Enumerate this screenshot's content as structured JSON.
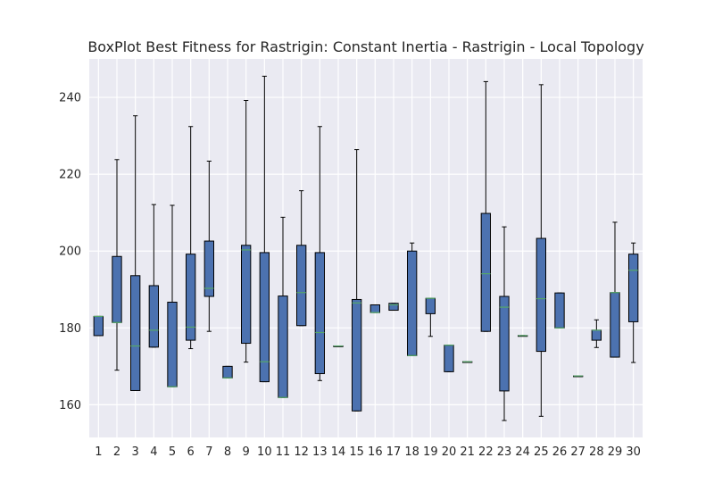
{
  "chart_data": {
    "type": "box",
    "title": "BoxPlot Best Fitness for Rastrigin: Constant Inertia - Rastrigin - Local Topology",
    "xlabel": "",
    "ylabel": "",
    "categories": [
      "1",
      "2",
      "3",
      "4",
      "5",
      "6",
      "7",
      "8",
      "9",
      "10",
      "11",
      "12",
      "13",
      "14",
      "15",
      "16",
      "17",
      "18",
      "19",
      "20",
      "21",
      "22",
      "23",
      "24",
      "25",
      "26",
      "27",
      "28",
      "29",
      "30"
    ],
    "yticks": [
      160,
      180,
      200,
      220,
      240
    ],
    "ylim": [
      151.5,
      250
    ],
    "grid": true,
    "colors": {
      "box": "#4c72b0",
      "median": "#55a868",
      "background": "#eaeaf2",
      "grid": "#ffffff",
      "edge": "#000000"
    },
    "boxes": [
      {
        "min": 178.0,
        "q1": 178.0,
        "median": 183.0,
        "q3": 183.0,
        "max": 183.0
      },
      {
        "min": 169.0,
        "q1": 181.4,
        "median": 181.4,
        "q3": 198.6,
        "max": 223.8
      },
      {
        "min": 163.7,
        "q1": 163.7,
        "median": 175.3,
        "q3": 193.6,
        "max": 235.2
      },
      {
        "min": 175.0,
        "q1": 175.0,
        "median": 179.4,
        "q3": 191.0,
        "max": 212.1
      },
      {
        "min": 164.7,
        "q1": 164.7,
        "median": 164.7,
        "q3": 186.7,
        "max": 211.9
      },
      {
        "min": 174.6,
        "q1": 176.8,
        "median": 180.2,
        "q3": 199.2,
        "max": 232.4
      },
      {
        "min": 179.1,
        "q1": 188.2,
        "median": 190.3,
        "q3": 202.6,
        "max": 223.4
      },
      {
        "min": 167.0,
        "q1": 167.0,
        "median": 167.0,
        "q3": 170.0,
        "max": 170.0
      },
      {
        "min": 171.1,
        "q1": 176.0,
        "median": 200.3,
        "q3": 201.5,
        "max": 239.2
      },
      {
        "min": 166.0,
        "q1": 166.0,
        "median": 171.2,
        "q3": 199.6,
        "max": 245.5
      },
      {
        "min": 161.9,
        "q1": 161.9,
        "median": 161.9,
        "q3": 188.3,
        "max": 208.8
      },
      {
        "min": 180.6,
        "q1": 180.6,
        "median": 189.2,
        "q3": 201.5,
        "max": 215.7
      },
      {
        "min": 166.3,
        "q1": 168.1,
        "median": 178.8,
        "q3": 199.6,
        "max": 232.4
      },
      {
        "min": 175.3,
        "q1": 175.3,
        "median": 175.3,
        "q3": 175.3,
        "max": 175.3
      },
      {
        "min": 158.4,
        "q1": 158.4,
        "median": 186.5,
        "q3": 187.4,
        "max": 226.4
      },
      {
        "min": 184.0,
        "q1": 184.0,
        "median": 184.0,
        "q3": 186.0,
        "max": 186.0
      },
      {
        "min": 184.6,
        "q1": 184.6,
        "median": 186.0,
        "q3": 186.4,
        "max": 186.4
      },
      {
        "min": 172.8,
        "q1": 172.8,
        "median": 172.8,
        "q3": 200.0,
        "max": 202.1
      },
      {
        "min": 177.8,
        "q1": 183.7,
        "median": 187.7,
        "q3": 187.7,
        "max": 187.7
      },
      {
        "min": 168.6,
        "q1": 168.6,
        "median": 175.5,
        "q3": 175.5,
        "max": 175.5
      },
      {
        "min": 171.2,
        "q1": 171.2,
        "median": 171.2,
        "q3": 171.2,
        "max": 171.2
      },
      {
        "min": 179.1,
        "q1": 179.1,
        "median": 194.1,
        "q3": 209.8,
        "max": 244.1
      },
      {
        "min": 155.9,
        "q1": 163.6,
        "median": 185.4,
        "q3": 188.2,
        "max": 206.3
      },
      {
        "min": 178.0,
        "q1": 178.0,
        "median": 178.0,
        "q3": 178.0,
        "max": 178.0
      },
      {
        "min": 157.0,
        "q1": 173.9,
        "median": 187.6,
        "q3": 203.3,
        "max": 243.3
      },
      {
        "min": 180.0,
        "q1": 180.0,
        "median": 180.0,
        "q3": 189.1,
        "max": 189.1
      },
      {
        "min": 167.5,
        "q1": 167.5,
        "median": 167.5,
        "q3": 167.5,
        "max": 167.5
      },
      {
        "min": 174.9,
        "q1": 176.8,
        "median": 179.4,
        "q3": 179.4,
        "max": 182.1
      },
      {
        "min": 172.4,
        "q1": 172.4,
        "median": 189.2,
        "q3": 189.2,
        "max": 207.5
      },
      {
        "min": 171.0,
        "q1": 181.6,
        "median": 195.0,
        "q3": 199.2,
        "max": 202.1
      }
    ]
  }
}
